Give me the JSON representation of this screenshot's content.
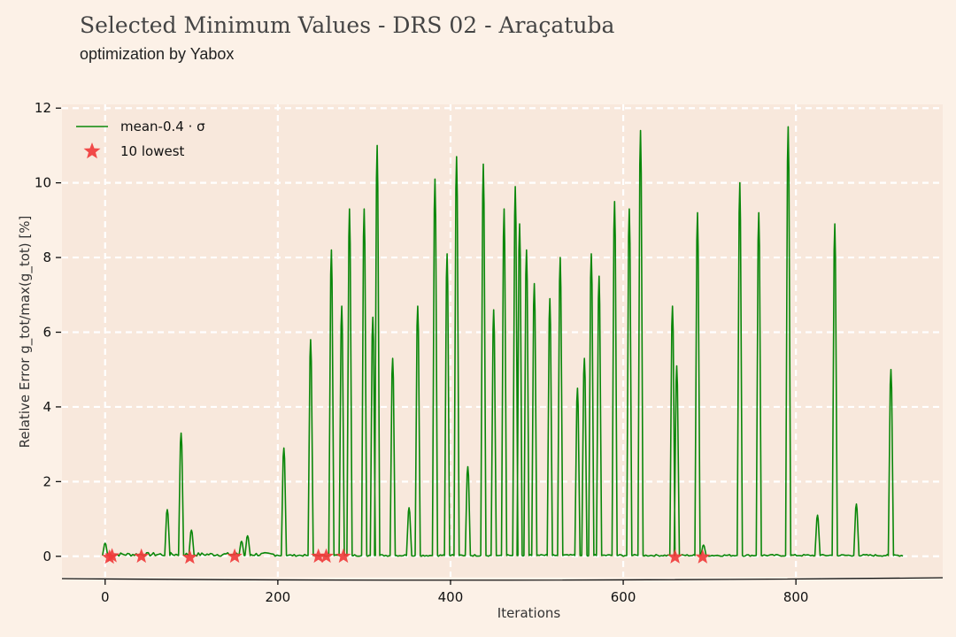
{
  "header": {
    "title": "Selected Minimum Values - DRS 02 - Araçatuba",
    "subtitle": "optimization by Yabox"
  },
  "colors": {
    "background": "#fcf1e7",
    "plot_area": "#f8e8dc",
    "grid": "#ffffff",
    "line": "#0a870a",
    "marker": "#f03c3c"
  },
  "chart_data": {
    "type": "line",
    "title": "Selected Minimum Values - DRS 02 - Araçatuba",
    "subtitle": "optimization by Yabox",
    "xlabel": "Iterations",
    "ylabel": "Relative Error g_tot/max(g_tot) [%]",
    "xlim": [
      -50,
      970
    ],
    "ylim": [
      -0.55,
      12.1
    ],
    "x_ticks": [
      0,
      200,
      400,
      600,
      800
    ],
    "y_ticks": [
      0,
      2,
      4,
      6,
      8,
      10,
      12
    ],
    "grid": true,
    "legend_position": "top-left",
    "legend": [
      "mean-0.4 · σ",
      "10 lowest"
    ],
    "series": [
      {
        "name": "mean-0.4 · σ",
        "style": "line",
        "peaks": [
          [
            0,
            0.35
          ],
          [
            72,
            1.25
          ],
          [
            88,
            3.3
          ],
          [
            100,
            0.7
          ],
          [
            158,
            0.4
          ],
          [
            165,
            0.55
          ],
          [
            207,
            2.9
          ],
          [
            238,
            5.8
          ],
          [
            262,
            8.2
          ],
          [
            274,
            6.7
          ],
          [
            283,
            9.3
          ],
          [
            300,
            9.3
          ],
          [
            310,
            6.4
          ],
          [
            315,
            11.0
          ],
          [
            333,
            5.3
          ],
          [
            352,
            1.3
          ],
          [
            362,
            6.7
          ],
          [
            382,
            10.1
          ],
          [
            396,
            8.1
          ],
          [
            407,
            10.7
          ],
          [
            420,
            2.4
          ],
          [
            438,
            10.5
          ],
          [
            450,
            6.6
          ],
          [
            462,
            9.3
          ],
          [
            475,
            9.9
          ],
          [
            480,
            8.9
          ],
          [
            488,
            8.2
          ],
          [
            497,
            7.3
          ],
          [
            515,
            6.9
          ],
          [
            527,
            8.0
          ],
          [
            547,
            4.5
          ],
          [
            555,
            5.3
          ],
          [
            563,
            8.1
          ],
          [
            572,
            7.5
          ],
          [
            590,
            9.5
          ],
          [
            607,
            9.3
          ],
          [
            620,
            11.4
          ],
          [
            657,
            6.7
          ],
          [
            662,
            5.1
          ],
          [
            686,
            9.2
          ],
          [
            693,
            0.3
          ],
          [
            735,
            10.0
          ],
          [
            757,
            9.2
          ],
          [
            791,
            11.5
          ],
          [
            825,
            1.1
          ],
          [
            845,
            8.9
          ],
          [
            870,
            1.4
          ],
          [
            910,
            5.0
          ]
        ]
      },
      {
        "name": "10 lowest",
        "style": "markers",
        "points": [
          [
            5,
            -0.03
          ],
          [
            8,
            0.01
          ],
          [
            42,
            0.0
          ],
          [
            98,
            -0.03
          ],
          [
            150,
            0.0
          ],
          [
            247,
            0.0
          ],
          [
            256,
            0.0
          ],
          [
            276,
            0.0
          ],
          [
            660,
            -0.02
          ],
          [
            692,
            -0.02
          ]
        ]
      }
    ]
  }
}
